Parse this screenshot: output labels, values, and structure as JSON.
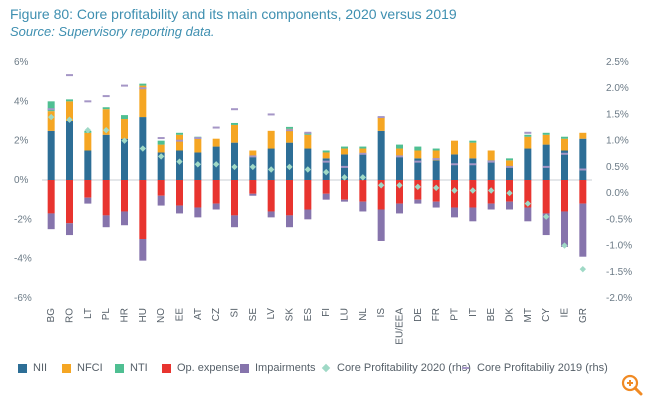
{
  "header": {
    "title": "Figure 80: Core profitability and its main components, 2020 versus 2019",
    "source": "Source: Supervisory reporting data."
  },
  "chart_data": {
    "type": "bar",
    "stacked": true,
    "title": "Figure 80: Core profitability and its main components, 2020 versus 2019",
    "ylim": [
      -6,
      6
    ],
    "y_ticks": [
      "6%",
      "4%",
      "2%",
      "0%",
      "-2%",
      "-4%",
      "-6%"
    ],
    "y2lim": [
      -2.0,
      2.5
    ],
    "y2_ticks": [
      "2.5%",
      "2.0%",
      "1.5%",
      "1.0%",
      "0.5%",
      "0.0%",
      "-0.5%",
      "-1.0%",
      "-1.5%",
      "-2.0%"
    ],
    "categories": [
      "BG",
      "RO",
      "LT",
      "PL",
      "HR",
      "HU",
      "NO",
      "EE",
      "AT",
      "CZ",
      "SI",
      "SE",
      "LV",
      "SK",
      "ES",
      "FI",
      "LU",
      "NL",
      "IS",
      "EU/EEA",
      "DE",
      "FR",
      "PT",
      "IT",
      "BE",
      "DK",
      "MT",
      "CY",
      "IE",
      "GR"
    ],
    "series": [
      {
        "name": "NII",
        "axis": "left",
        "color": "#2d6e96",
        "values": [
          2.5,
          3.0,
          1.5,
          2.3,
          2.1,
          3.2,
          1.4,
          1.5,
          1.4,
          1.7,
          1.9,
          1.2,
          1.6,
          1.9,
          1.6,
          1.1,
          1.3,
          1.3,
          2.5,
          1.2,
          1.1,
          1.0,
          1.3,
          1.1,
          1.0,
          0.7,
          1.6,
          1.8,
          1.5,
          2.1
        ]
      },
      {
        "name": "NFCI",
        "axis": "left",
        "color": "#f5a623",
        "values": [
          1.0,
          1.0,
          0.9,
          1.3,
          1.0,
          1.6,
          0.4,
          0.8,
          0.7,
          0.4,
          0.9,
          0.3,
          0.9,
          0.7,
          0.7,
          0.3,
          0.3,
          0.3,
          0.7,
          0.4,
          0.4,
          0.5,
          0.7,
          0.8,
          0.5,
          0.3,
          0.6,
          0.5,
          0.6,
          0.3
        ]
      },
      {
        "name": "NTI",
        "axis": "left",
        "color": "#4fbf92",
        "values": [
          0.5,
          0.1,
          0.1,
          0.1,
          0.2,
          0.1,
          0.2,
          0.1,
          0.1,
          0.0,
          0.1,
          0.0,
          0.0,
          0.1,
          0.1,
          0.1,
          0.1,
          0.1,
          0.0,
          0.2,
          0.2,
          0.1,
          0.0,
          0.1,
          0.0,
          0.1,
          0.1,
          0.1,
          0.1,
          0.0
        ]
      },
      {
        "name": "Op. expenses",
        "axis": "left",
        "color": "#e8342f",
        "values": [
          -1.7,
          -2.2,
          -0.9,
          -1.8,
          -1.6,
          -3.0,
          -0.8,
          -1.3,
          -1.4,
          -1.2,
          -1.8,
          -0.7,
          -1.6,
          -1.8,
          -1.5,
          -0.7,
          -1.0,
          -1.1,
          -1.5,
          -1.2,
          -1.0,
          -1.1,
          -1.4,
          -1.4,
          -1.2,
          -1.1,
          -1.4,
          -1.7,
          -1.6,
          -1.2
        ]
      },
      {
        "name": "Impairments",
        "axis": "left",
        "color": "#8674ac",
        "values": [
          -0.8,
          -0.6,
          -0.3,
          -0.6,
          -0.7,
          -1.1,
          -0.5,
          -0.4,
          -0.5,
          -0.3,
          -0.6,
          -0.1,
          -0.3,
          -0.6,
          -0.5,
          -0.3,
          -0.1,
          -0.5,
          -1.6,
          -0.5,
          -0.2,
          -0.3,
          -0.5,
          -0.7,
          -0.3,
          -0.4,
          -0.7,
          -1.1,
          -1.8,
          -2.7
        ]
      },
      {
        "name": "Core Profitability 2020 (rhs)",
        "axis": "right",
        "marker": "diamond",
        "color": "#9fd9c6",
        "values": [
          1.45,
          1.4,
          1.2,
          1.2,
          1.0,
          0.85,
          0.7,
          0.6,
          0.55,
          0.55,
          0.5,
          0.5,
          0.45,
          0.5,
          0.45,
          0.4,
          0.3,
          0.3,
          0.15,
          0.15,
          0.12,
          0.1,
          0.05,
          0.05,
          0.05,
          0.0,
          -0.2,
          -0.45,
          -1.0,
          -1.45
        ]
      },
      {
        "name": "Core Profitabiliy 2019 (rhs)",
        "axis": "right",
        "marker": "dash",
        "color": "#a596c6",
        "values": [
          1.6,
          2.25,
          1.75,
          1.85,
          2.05,
          2.0,
          1.05,
          1.0,
          1.05,
          1.25,
          1.6,
          0.7,
          1.5,
          1.2,
          1.15,
          0.6,
          0.5,
          0.75,
          1.45,
          0.7,
          0.6,
          0.65,
          0.55,
          0.55,
          0.6,
          0.5,
          1.15,
          0.5,
          0.75,
          0.45
        ]
      }
    ]
  }
}
